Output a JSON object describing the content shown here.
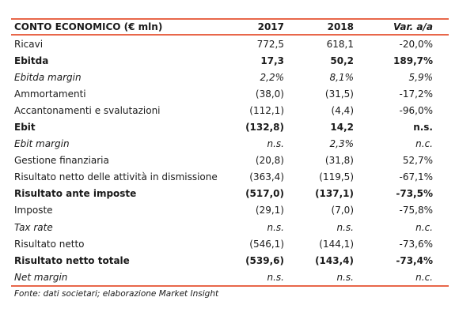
{
  "table": {
    "header": [
      "CONTO ECONOMICO (€ mln)",
      "2017",
      "2018",
      "Var. a/a"
    ],
    "rows": [
      {
        "cells": [
          "Ricavi",
          "772,5",
          "618,1",
          "-20,0%"
        ],
        "style": "normal"
      },
      {
        "cells": [
          "Ebitda",
          "17,3",
          "50,2",
          "189,7%"
        ],
        "style": "bold"
      },
      {
        "cells": [
          "Ebitda margin",
          "2,2%",
          "8,1%",
          "5,9%"
        ],
        "style": "italic"
      },
      {
        "cells": [
          "Ammortamenti",
          "(38,0)",
          "(31,5)",
          "-17,2%"
        ],
        "style": "normal"
      },
      {
        "cells": [
          "Accantonamenti e svalutazioni",
          "(112,1)",
          "(4,4)",
          "-96,0%"
        ],
        "style": "normal"
      },
      {
        "cells": [
          "Ebit",
          "(132,8)",
          "14,2",
          "n.s."
        ],
        "style": "bold"
      },
      {
        "cells": [
          "Ebit margin",
          "n.s.",
          "2,3%",
          "n.c."
        ],
        "style": "italic"
      },
      {
        "cells": [
          "Gestione finanziaria",
          "(20,8)",
          "(31,8)",
          "52,7%"
        ],
        "style": "normal"
      },
      {
        "cells": [
          "Risultato netto delle attività in dismissione",
          "(363,4)",
          "(119,5)",
          "-67,1%"
        ],
        "style": "normal"
      },
      {
        "cells": [
          "Risultato ante imposte",
          "(517,0)",
          "(137,1)",
          "-73,5%"
        ],
        "style": "bold"
      },
      {
        "cells": [
          "Imposte",
          "(29,1)",
          "(7,0)",
          "-75,8%"
        ],
        "style": "normal"
      },
      {
        "cells": [
          "Tax rate",
          "n.s.",
          "n.s.",
          "n.c."
        ],
        "style": "italic"
      },
      {
        "cells": [
          "Risultato netto",
          "(546,1)",
          "(144,1)",
          "-73,6%"
        ],
        "style": "normal"
      },
      {
        "cells": [
          "Risultato netto totale",
          "(539,6)",
          "(143,4)",
          "-73,4%"
        ],
        "style": "bold"
      },
      {
        "cells": [
          "Net margin",
          "n.s.",
          "n.s.",
          "n.c."
        ],
        "style": "italic"
      }
    ],
    "source": "Fonte: dati societari; elaborazione Market Insight"
  }
}
